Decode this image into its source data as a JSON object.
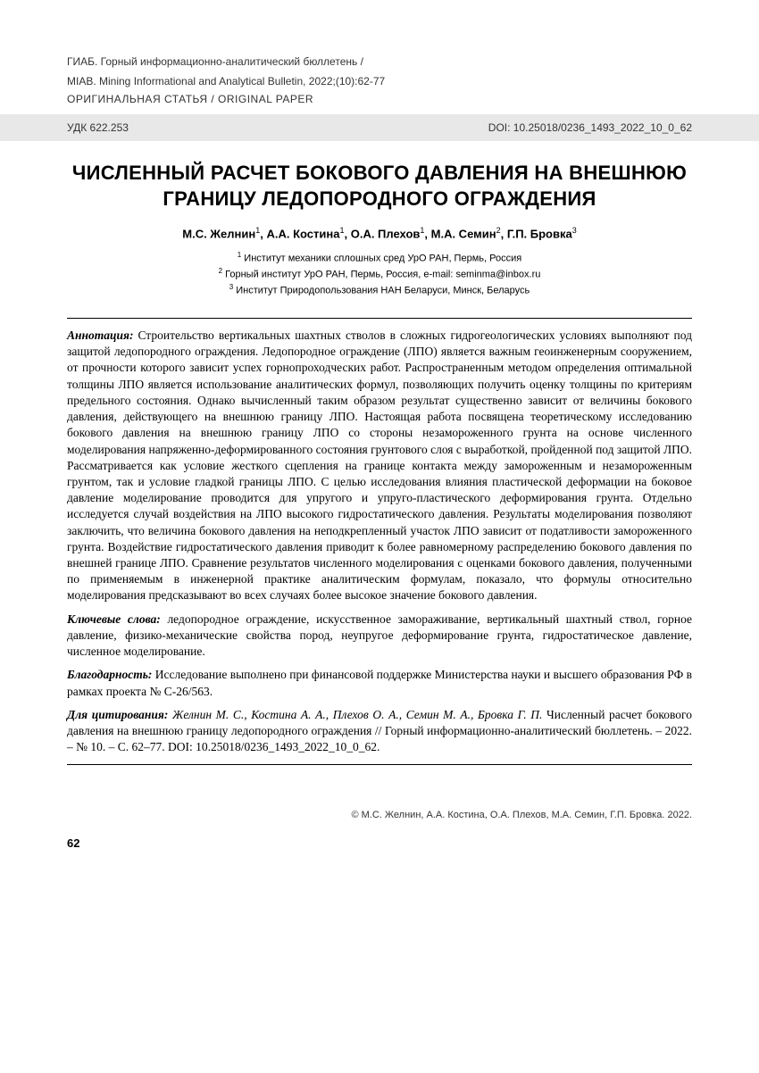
{
  "header": {
    "journal_ru": "ГИАБ. Горный информационно-аналитический бюллетень /",
    "journal_en": "MIAB. Mining Informational and Analytical Bulletin, 2022;(10):62-77",
    "article_type": "ОРИГИНАЛЬНАЯ СТАТЬЯ / ORIGINAL PAPER"
  },
  "band": {
    "udk": "УДК 622.253",
    "doi": "DOI: 10.25018/0236_1493_2022_10_0_62"
  },
  "title": "ЧИСЛЕННЫЙ РАСЧЕТ БОКОВОГО ДАВЛЕНИЯ НА ВНЕШНЮЮ ГРАНИЦУ ЛЕДОПОРОДНОГО ОГРАЖДЕНИЯ",
  "authors_html": "М.С. Желнин<sup>1</sup>, А.А. Костина<sup>1</sup>, О.А. Плехов<sup>1</sup>, М.А. Семин<sup>2</sup>, Г.П. Бровка<sup>3</sup>",
  "affiliations_html": "<sup>1</sup> Институт механики сплошных сред УрО РАН, Пермь, Россия<br><sup>2</sup> Горный институт УрО РАН, Пермь, Россия, e-mail: seminma@inbox.ru<br><sup>3</sup> Институт Природопользования НАН Беларуси, Минск, Беларусь",
  "sections": {
    "abstract_label": "Аннотация:",
    "abstract_text": " Строительство вертикальных шахтных стволов в сложных гидрогеологических условиях выполняют под защитой ледопородного ограждения. Ледопородное ограждение (ЛПО) является важным геоинженерным сооружением, от прочности которого зависит успех горнопроходческих работ. Распространенным методом определения оптимальной толщины ЛПО является использование аналитических формул, позволяющих получить оценку толщины по критериям предельного состояния. Однако вычисленный таким образом результат существенно зависит от величины бокового давления, действующего на внешнюю границу ЛПО. Настоящая работа посвящена теоретическому исследованию бокового давления на внешнюю границу ЛПО со стороны незамороженного грунта на основе численного моделирования напряженно-деформированного состояния грунтового слоя с выработкой, пройденной под защитой ЛПО. Рассматривается как условие жесткого сцепления на границе контакта между замороженным и незамороженным грунтом, так и условие гладкой границы ЛПО. С целью исследования влияния пластической деформации на боковое давление моделирование проводится для упругого и упруго-пластического деформирования грунта. Отдельно исследуется случай воздействия на ЛПО высокого гидростатического давления. Результаты моделирования позволяют заключить, что величина бокового давления на неподкрепленный участок ЛПО зависит от податливости замороженного грунта. Воздействие гидростатического давления приводит к более равномерному распределению бокового давления по внешней границе ЛПО. Сравнение результатов численного моделирования с оценками бокового давления, полученными по применяемым в инженерной практике аналитическим формулам, показало, что формулы относительно моделирования предсказывают во всех случаях более высокое значение бокового давления.",
    "keywords_label": "Ключевые слова:",
    "keywords_text": " ледопородное ограждение, искусственное замораживание, вертикальный шахтный ствол, горное давление, физико-механические свойства пород, неупругое деформирование грунта, гидростатическое давление, численное моделирование.",
    "thanks_label": "Благодарность:",
    "thanks_text": " Исследование выполнено при финансовой поддержке Министерства науки и высшего образования РФ в рамках проекта № С-26/563.",
    "citation_label": "Для цитирования:",
    "citation_text_italic": " Желнин М. С., Костина А. А., Плехов О. А., Семин М. А., Бровка Г. П.",
    "citation_text_rest": " Численный расчет бокового давления на внешнюю границу ледопородного ограждения // Горный информационно-аналитический бюллетень. – 2022. – № 10. – С. 62–77. DOI: 10.25018/0236_1493_2022_10_0_62."
  },
  "copyright": "© М.С. Желнин, А.А. Костина, О.А. Плехов, М.А. Семин, Г.П. Бровка. 2022.",
  "page_number": "62"
}
